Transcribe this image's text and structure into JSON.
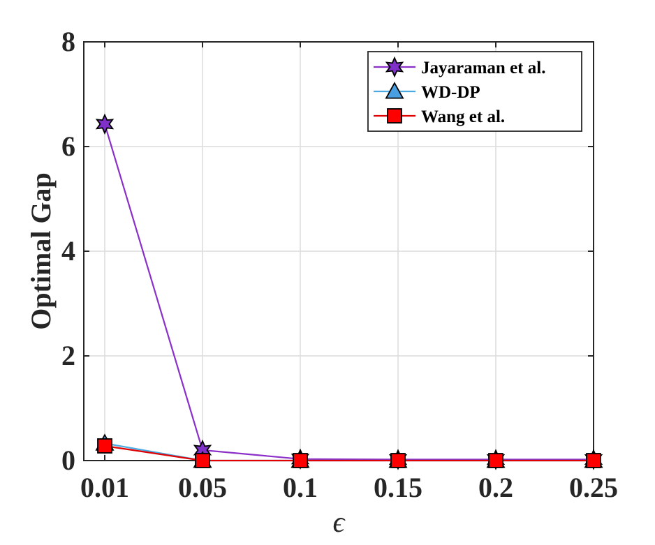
{
  "chart_data": {
    "type": "line",
    "title": "",
    "xlabel": "ϵ",
    "ylabel": "Optimal Gap",
    "categories": [
      "0.01",
      "0.05",
      "0.1",
      "0.15",
      "0.2",
      "0.25"
    ],
    "ylim": [
      0,
      8
    ],
    "yticks": [
      "0",
      "2",
      "4",
      "6",
      "8"
    ],
    "grid": true,
    "legend_position": "top-right",
    "series": [
      {
        "name": "Jayaraman et al.",
        "values": [
          6.43,
          0.2,
          0.03,
          0.02,
          0.02,
          0.02
        ],
        "color": "#8b2fc9",
        "marker_fill": "#7e30c8",
        "marker": "star"
      },
      {
        "name": "WD-DP",
        "values": [
          0.33,
          0.0,
          0.0,
          0.0,
          0.0,
          0.0
        ],
        "color": "#4aa9e0",
        "marker_fill": "#4a9fe0",
        "marker": "triangle"
      },
      {
        "name": "Wang et al.",
        "values": [
          0.28,
          0.0,
          0.0,
          0.0,
          0.0,
          0.0
        ],
        "color": "#e00000",
        "marker_fill": "#ff0000",
        "marker": "square"
      }
    ]
  }
}
